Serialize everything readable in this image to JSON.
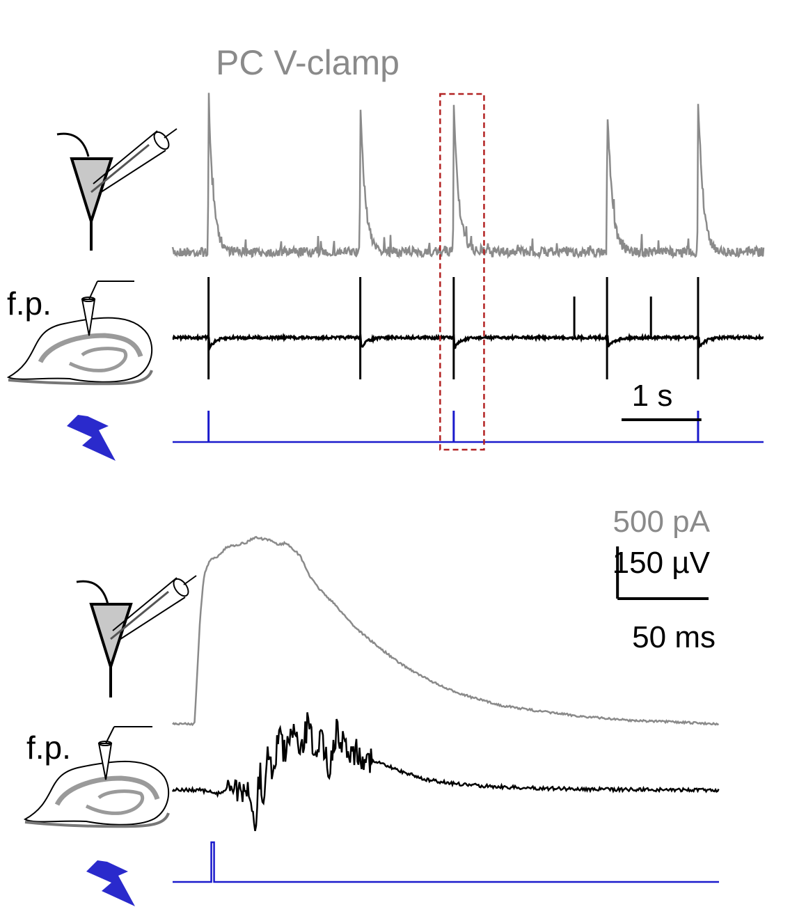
{
  "colors": {
    "pc_trace": "#8a8a8a",
    "fp_trace": "#000000",
    "stim_trace": "#1a1acc",
    "highlight_box": "#b22222",
    "neuron_fill": "#c8c8c8",
    "slice_band": "#9a9a9a"
  },
  "icons": {
    "neuron": "pyramidal-neuron-with-patch-pipette",
    "slice": "hippocampal-slice-with-field-electrode",
    "stimulus": "lightning-bolt"
  },
  "chart_data": [
    {
      "type": "line",
      "title": "PC V-clamp",
      "panel": "top",
      "series": [
        {
          "name": "",
          "kind": "pc",
          "spike_times_s": [
            0.45,
            2.35,
            3.52,
            5.44,
            6.58
          ]
        },
        {
          "name": "f.p.",
          "kind": "fp",
          "pop_spike_times_s": [
            0.45,
            2.35,
            3.52,
            5.44,
            6.58
          ],
          "small_spike_times_s": [
            5.03,
            5.99
          ]
        },
        {
          "name": "",
          "kind": "stim",
          "stim_times_s": [
            0.45,
            3.52,
            6.58
          ]
        }
      ],
      "x_range_s": [
        0,
        7.4
      ],
      "highlight_window_s": [
        3.35,
        3.9
      ],
      "scalebar_time_label": "1 s",
      "scalebar_time_value_s": 1
    },
    {
      "type": "line",
      "panel": "bottom",
      "series": [
        {
          "name": "",
          "kind": "pc_current",
          "t_ms": [
            0,
            12,
            15,
            17,
            19,
            21,
            25,
            30,
            40,
            45,
            55,
            58,
            62,
            66,
            70,
            73,
            76,
            80,
            90,
            100,
            112,
            124,
            136,
            150,
            165,
            180,
            200,
            225,
            250,
            275,
            300
          ],
          "level": [
            0,
            0,
            0.55,
            0.78,
            0.85,
            0.88,
            0.9,
            0.95,
            0.97,
            1.0,
            0.98,
            0.96,
            0.97,
            0.94,
            0.9,
            0.84,
            0.78,
            0.73,
            0.63,
            0.52,
            0.42,
            0.33,
            0.26,
            0.19,
            0.14,
            0.1,
            0.07,
            0.04,
            0.02,
            0.01,
            0.0
          ]
        },
        {
          "name": "f.p.",
          "kind": "fp_potential",
          "t_ms": [
            0,
            15,
            25,
            30,
            34,
            38,
            42,
            45,
            48,
            50,
            52,
            55,
            58,
            62,
            66,
            70,
            74,
            78,
            82,
            86,
            90,
            96,
            100,
            110,
            125,
            140,
            160,
            190,
            230,
            300
          ],
          "level": [
            0,
            0,
            -0.05,
            0.02,
            0.1,
            -0.15,
            0.05,
            -0.55,
            0.3,
            -0.35,
            0.55,
            0.2,
            0.7,
            0.45,
            0.8,
            0.4,
            0.85,
            0.55,
            0.65,
            0.3,
            0.75,
            0.55,
            0.5,
            0.38,
            0.25,
            0.13,
            0.07,
            0.03,
            0.01,
            0.0
          ]
        },
        {
          "name": "",
          "kind": "stim",
          "stim_time_ms": 22
        }
      ],
      "x_range_ms": [
        0,
        300
      ],
      "scalebar_labels": {
        "current": "500 pA",
        "voltage": "150 µV",
        "time": "50 ms"
      },
      "scalebar_values": {
        "current_pA": 500,
        "voltage_uV": 150,
        "time_ms": 50
      }
    }
  ],
  "labels": {
    "fp_top": "f.p.",
    "fp_bottom": "f.p."
  }
}
